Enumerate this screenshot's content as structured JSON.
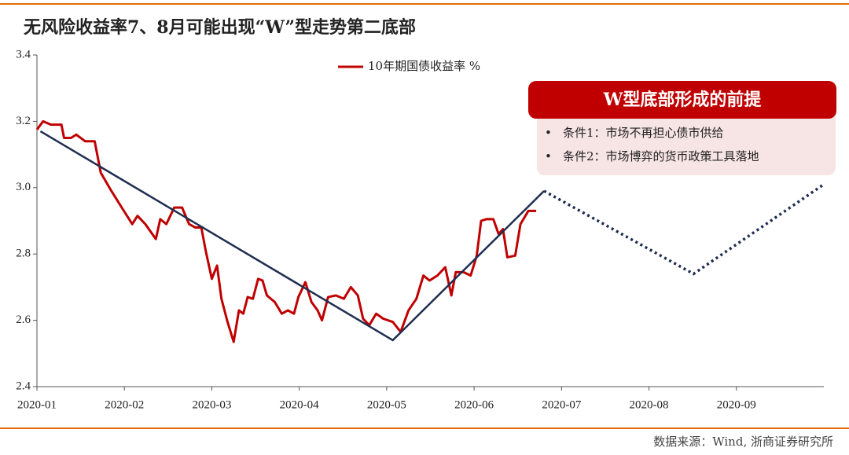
{
  "chart_data": {
    "type": "line",
    "title": "无风险收益率7、8月可能出现“W”型走势第二底部",
    "source": "数据来源：Wind, 浙商证券研究所",
    "xlim": [
      0,
      9
    ],
    "xticks": [
      {
        "value": 0,
        "label": "2020-01"
      },
      {
        "value": 1,
        "label": "2020-02"
      },
      {
        "value": 2,
        "label": "2020-03"
      },
      {
        "value": 3,
        "label": "2020-04"
      },
      {
        "value": 4,
        "label": "2020-05"
      },
      {
        "value": 5,
        "label": "2020-06"
      },
      {
        "value": 6,
        "label": "2020-07"
      },
      {
        "value": 7,
        "label": "2020-08"
      },
      {
        "value": 8,
        "label": "2020-09"
      }
    ],
    "ylim": [
      2.4,
      3.4
    ],
    "yticks": [
      2.4,
      2.6,
      2.8,
      {
        "value": 3,
        "label": "3.0"
      },
      3.2,
      3.4
    ],
    "legend": "top",
    "series": [
      {
        "name": "10年期国债收益率 %",
        "color": "#c00000",
        "x": [
          0,
          0.07,
          0.16,
          0.22,
          0.28,
          0.31,
          0.39,
          0.45,
          0.55,
          0.66,
          0.73,
          0.84,
          0.97,
          1.09,
          1.15,
          1.24,
          1.36,
          1.41,
          1.48,
          1.57,
          1.66,
          1.74,
          1.81,
          1.88,
          1.93,
          2.0,
          2.06,
          2.11,
          2.18,
          2.25,
          2.31,
          2.36,
          2.41,
          2.47,
          2.53,
          2.58,
          2.63,
          2.72,
          2.8,
          2.87,
          2.94,
          2.99,
          3.07,
          3.14,
          3.21,
          3.26,
          3.33,
          3.42,
          3.51,
          3.59,
          3.67,
          3.73,
          3.8,
          3.88,
          3.96,
          4.07,
          4.16,
          4.25,
          4.34,
          4.42,
          4.49,
          4.58,
          4.67,
          4.74,
          4.79,
          4.88,
          4.96,
          5.03,
          5.08,
          5.14,
          5.22,
          5.28,
          5.33,
          5.38,
          5.47,
          5.53,
          5.62,
          5.71
        ],
        "values": [
          3.175,
          3.2,
          3.19,
          3.19,
          3.19,
          3.15,
          3.15,
          3.16,
          3.14,
          3.14,
          3.045,
          2.995,
          2.94,
          2.89,
          2.915,
          2.89,
          2.845,
          2.905,
          2.89,
          2.94,
          2.94,
          2.89,
          2.88,
          2.88,
          2.81,
          2.725,
          2.765,
          2.665,
          2.595,
          2.535,
          2.63,
          2.62,
          2.67,
          2.665,
          2.725,
          2.72,
          2.675,
          2.655,
          2.62,
          2.63,
          2.62,
          2.67,
          2.715,
          2.655,
          2.63,
          2.6,
          2.67,
          2.675,
          2.665,
          2.7,
          2.675,
          2.605,
          2.585,
          2.62,
          2.605,
          2.595,
          2.565,
          2.63,
          2.665,
          2.735,
          2.72,
          2.735,
          2.76,
          2.675,
          2.745,
          2.745,
          2.735,
          2.795,
          2.9,
          2.905,
          2.905,
          2.86,
          2.875,
          2.79,
          2.795,
          2.89,
          2.93,
          2.93
        ]
      }
    ],
    "trend": {
      "color": "#1f2d50",
      "x": [
        0.04,
        4.07,
        5.8
      ],
      "values": [
        3.17,
        2.54,
        2.99
      ]
    },
    "forecast": {
      "color": "#1f2d50",
      "style": "dotted",
      "x": [
        5.8,
        7.51,
        9
      ],
      "values": [
        2.99,
        2.74,
        3.01
      ]
    },
    "annotation": {
      "title": "W型底部形成的前提",
      "items": [
        "条件1：市场不再担心债市供给",
        "条件2：市场博弈的货币政策工具落地"
      ]
    }
  }
}
